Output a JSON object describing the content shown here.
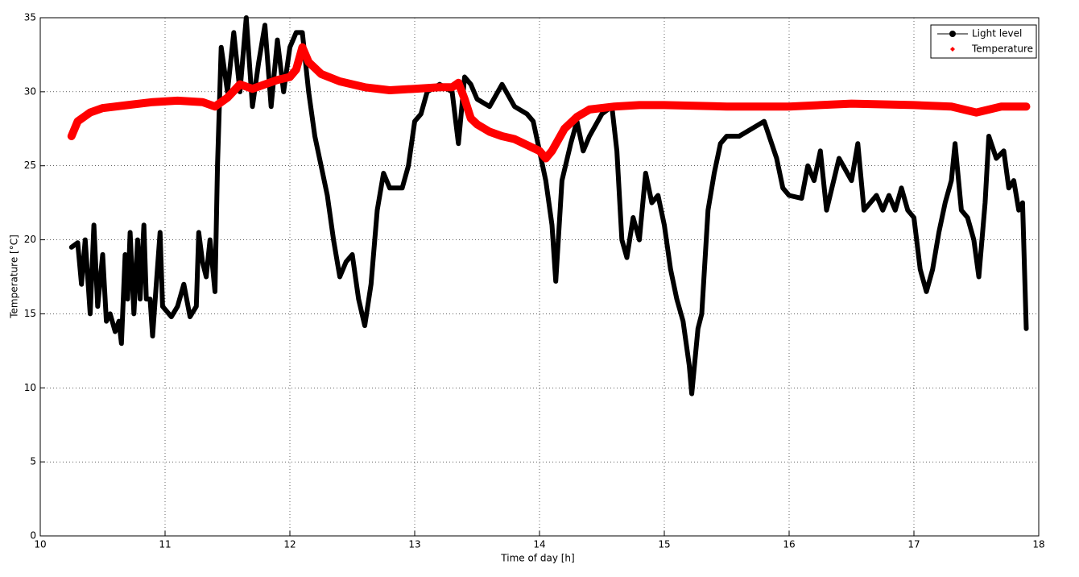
{
  "chart_data": {
    "type": "line",
    "xlabel": "Time of day [h]",
    "ylabel": "Temperature [°C]",
    "xlim": [
      10,
      18
    ],
    "xticks": [
      10,
      11,
      12,
      13,
      14,
      15,
      16,
      17,
      18
    ],
    "ylim": [
      0,
      35
    ],
    "yticks": [
      0,
      5,
      10,
      15,
      20,
      25,
      30,
      35
    ],
    "grid": true,
    "legend": "northeast",
    "series": [
      {
        "name": "Light level",
        "color": "#000000",
        "x": [
          10.25,
          10.3,
          10.33,
          10.36,
          10.4,
          10.43,
          10.46,
          10.5,
          10.53,
          10.56,
          10.6,
          10.63,
          10.65,
          10.68,
          10.7,
          10.72,
          10.75,
          10.78,
          10.8,
          10.83,
          10.85,
          10.88,
          10.9,
          10.93,
          10.96,
          10.98,
          11.05,
          11.1,
          11.15,
          11.2,
          11.25,
          11.27,
          11.3,
          11.33,
          11.36,
          11.4,
          11.42,
          11.45,
          11.5,
          11.55,
          11.6,
          11.65,
          11.7,
          11.75,
          11.8,
          11.85,
          11.9,
          11.95,
          12.0,
          12.05,
          12.1,
          12.15,
          12.2,
          12.25,
          12.3,
          12.35,
          12.4,
          12.45,
          12.5,
          12.55,
          12.6,
          12.65,
          12.7,
          12.75,
          12.8,
          12.9,
          12.95,
          13.0,
          13.05,
          13.1,
          13.2,
          13.3,
          13.35,
          13.4,
          13.45,
          13.5,
          13.6,
          13.7,
          13.8,
          13.9,
          13.95,
          14.0,
          14.05,
          14.1,
          14.13,
          14.18,
          14.25,
          14.3,
          14.35,
          14.4,
          14.5,
          14.58,
          14.62,
          14.66,
          14.7,
          14.75,
          14.8,
          14.85,
          14.9,
          14.95,
          15.0,
          15.05,
          15.1,
          15.15,
          15.2,
          15.22,
          15.27,
          15.3,
          15.35,
          15.4,
          15.45,
          15.5,
          15.6,
          15.7,
          15.8,
          15.9,
          15.95,
          16.0,
          16.1,
          16.15,
          16.2,
          16.25,
          16.3,
          16.4,
          16.5,
          16.55,
          16.6,
          16.7,
          16.75,
          16.8,
          16.85,
          16.9,
          16.95,
          17.0,
          17.05,
          17.1,
          17.15,
          17.2,
          17.25,
          17.3,
          17.33,
          17.38,
          17.43,
          17.48,
          17.52,
          17.57,
          17.6,
          17.66,
          17.72,
          17.76,
          17.8,
          17.84,
          17.87,
          17.9
        ],
        "values": [
          19.5,
          19.8,
          17,
          20,
          15,
          21,
          15.5,
          19,
          14.5,
          15,
          13.8,
          14.5,
          13,
          19,
          16,
          20.5,
          15,
          20,
          16,
          21,
          16,
          16,
          13.5,
          17,
          20.5,
          15.5,
          14.8,
          15.5,
          17,
          14.8,
          15.5,
          20.5,
          18.5,
          17.5,
          20,
          16.5,
          25,
          33,
          30,
          34,
          30,
          35,
          29,
          32,
          34.5,
          29,
          33.5,
          30,
          33,
          34,
          34,
          30,
          27,
          25,
          23,
          20,
          17.5,
          18.5,
          19,
          16,
          14.2,
          17,
          22,
          24.5,
          23.5,
          23.5,
          25,
          28,
          28.5,
          30,
          30.5,
          30,
          26.5,
          31,
          30.5,
          29.5,
          29,
          30.5,
          29,
          28.5,
          28,
          26,
          24,
          21,
          17.2,
          24,
          26.5,
          28,
          26,
          27,
          28.5,
          29,
          26,
          20,
          18.8,
          21.5,
          20,
          24.5,
          22.5,
          23,
          21,
          18,
          16,
          14.5,
          11.5,
          9.6,
          14,
          15,
          22,
          24.5,
          26.5,
          27,
          27,
          27.5,
          28,
          25.5,
          23.5,
          23,
          22.8,
          25,
          24,
          26,
          22,
          25.5,
          24,
          26.5,
          22,
          23,
          22,
          23,
          22,
          23.5,
          22,
          21.5,
          18,
          16.5,
          18,
          20.5,
          22.5,
          24,
          26.5,
          22,
          21.5,
          20,
          17.5,
          22.5,
          27,
          25.5,
          26,
          23.5,
          24,
          22,
          22.5,
          14
        ]
      },
      {
        "name": "Temperature",
        "color": "#ff0000",
        "x": [
          10.25,
          10.3,
          10.4,
          10.5,
          10.7,
          10.9,
          11.1,
          11.3,
          11.4,
          11.5,
          11.6,
          11.7,
          11.8,
          11.9,
          12.0,
          12.05,
          12.1,
          12.15,
          12.25,
          12.4,
          12.6,
          12.8,
          13.0,
          13.2,
          13.3,
          13.35,
          13.4,
          13.45,
          13.5,
          13.6,
          13.7,
          13.8,
          13.9,
          14.0,
          14.05,
          14.1,
          14.2,
          14.3,
          14.4,
          14.6,
          14.8,
          15.0,
          15.5,
          16.0,
          16.5,
          17.0,
          17.3,
          17.5,
          17.7,
          17.9
        ],
        "values": [
          27,
          28,
          28.6,
          28.9,
          29.1,
          29.3,
          29.4,
          29.3,
          29.0,
          29.6,
          30.5,
          30.2,
          30.5,
          30.8,
          31,
          31.5,
          33,
          32,
          31.2,
          30.7,
          30.3,
          30.1,
          30.2,
          30.3,
          30.3,
          30.6,
          29.5,
          28.2,
          27.8,
          27.3,
          27.0,
          26.8,
          26.4,
          26.0,
          25.5,
          26,
          27.5,
          28.3,
          28.8,
          29.0,
          29.1,
          29.1,
          29.0,
          29.0,
          29.2,
          29.1,
          29.0,
          28.6,
          29.0,
          29.0
        ]
      }
    ]
  }
}
